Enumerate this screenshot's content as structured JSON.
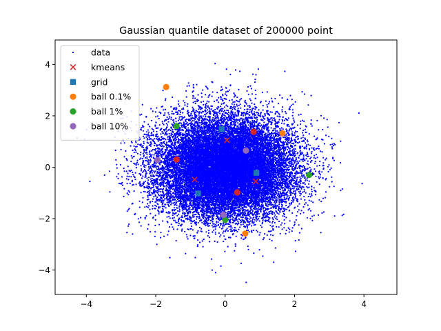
{
  "chart_data": {
    "type": "scatter",
    "title": "Gaussian quantile dataset of 200000 point",
    "xlabel": "",
    "ylabel": "",
    "xlim": [
      -4.9,
      4.95
    ],
    "ylim": [
      -4.95,
      4.95
    ],
    "xticks": [
      -4,
      -2,
      0,
      2,
      4
    ],
    "yticks": [
      -4,
      -2,
      0,
      2,
      4
    ],
    "grid": false,
    "legend_position": "top-left",
    "series": [
      {
        "name": "data",
        "marker": "point",
        "color": "#0000ff",
        "distribution": "gaussian",
        "n_points": 200000,
        "mean": [
          0,
          0
        ],
        "std": [
          1,
          1
        ]
      },
      {
        "name": "kmeans",
        "marker": "x",
        "color": "#d62728",
        "points": [
          [
            0.05,
            1.05
          ],
          [
            -0.88,
            -0.48
          ],
          [
            0.88,
            -0.55
          ]
        ]
      },
      {
        "name": "grid",
        "marker": "square",
        "color": "#1f77b4",
        "points": [
          [
            -0.1,
            1.48
          ],
          [
            0.9,
            -0.22
          ],
          [
            -0.78,
            -1.02
          ]
        ]
      },
      {
        "name": "ball 0.1%",
        "marker": "circle",
        "color": "#ff7f0e",
        "points": [
          [
            -1.7,
            3.12
          ],
          [
            1.65,
            1.32
          ],
          [
            0.58,
            -2.58
          ]
        ]
      },
      {
        "name": "ball 1%",
        "marker": "circle",
        "color": "#2ca02c",
        "points": [
          [
            -1.4,
            1.6
          ],
          [
            2.42,
            -0.3
          ],
          [
            0.0,
            -2.05
          ]
        ]
      },
      {
        "name": "ball 10%",
        "marker": "circle",
        "color": "#9467bd",
        "points": [
          [
            -1.95,
            0.28
          ],
          [
            0.6,
            0.65
          ],
          [
            -0.05,
            -1.85
          ]
        ]
      },
      {
        "name": "",
        "marker": "circle",
        "color": "#d62728",
        "points": [
          [
            0.82,
            1.38
          ],
          [
            -1.4,
            0.3
          ],
          [
            0.35,
            -0.98
          ]
        ]
      }
    ]
  }
}
